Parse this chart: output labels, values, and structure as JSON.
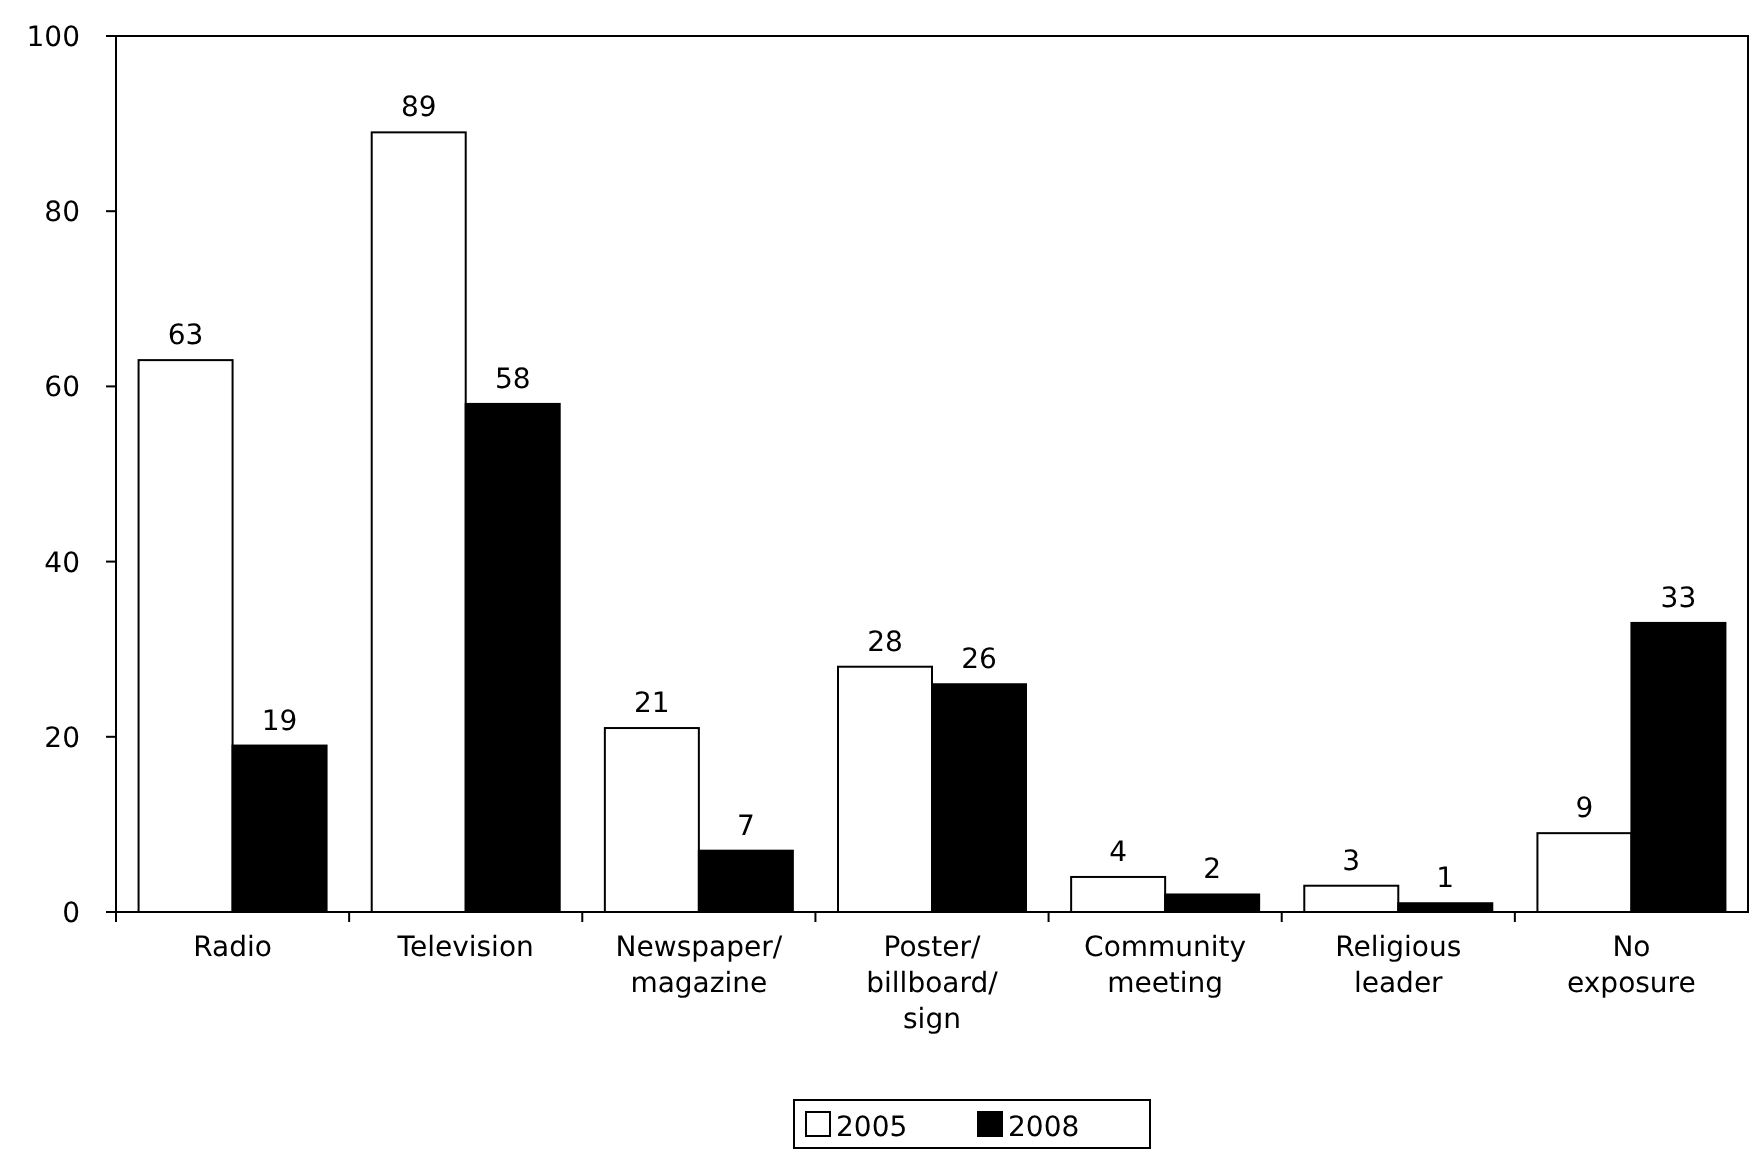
{
  "chart_data": {
    "type": "bar",
    "categories": [
      "Radio",
      "Television",
      "Newspaper/magazine",
      "Poster/billboard/sign",
      "Community meeting",
      "Religious leader",
      "No exposure"
    ],
    "series": [
      {
        "name": "2005",
        "color": "#ffffff",
        "values": [
          63,
          89,
          21,
          28,
          4,
          3,
          9
        ]
      },
      {
        "name": "2008",
        "color": "#000000",
        "values": [
          19,
          58,
          7,
          26,
          2,
          1,
          33
        ]
      }
    ],
    "ylim": [
      0,
      100
    ],
    "yticks": [
      0,
      20,
      40,
      60,
      80,
      100
    ],
    "data_labels": true,
    "legend": "bottom",
    "grid": false
  }
}
